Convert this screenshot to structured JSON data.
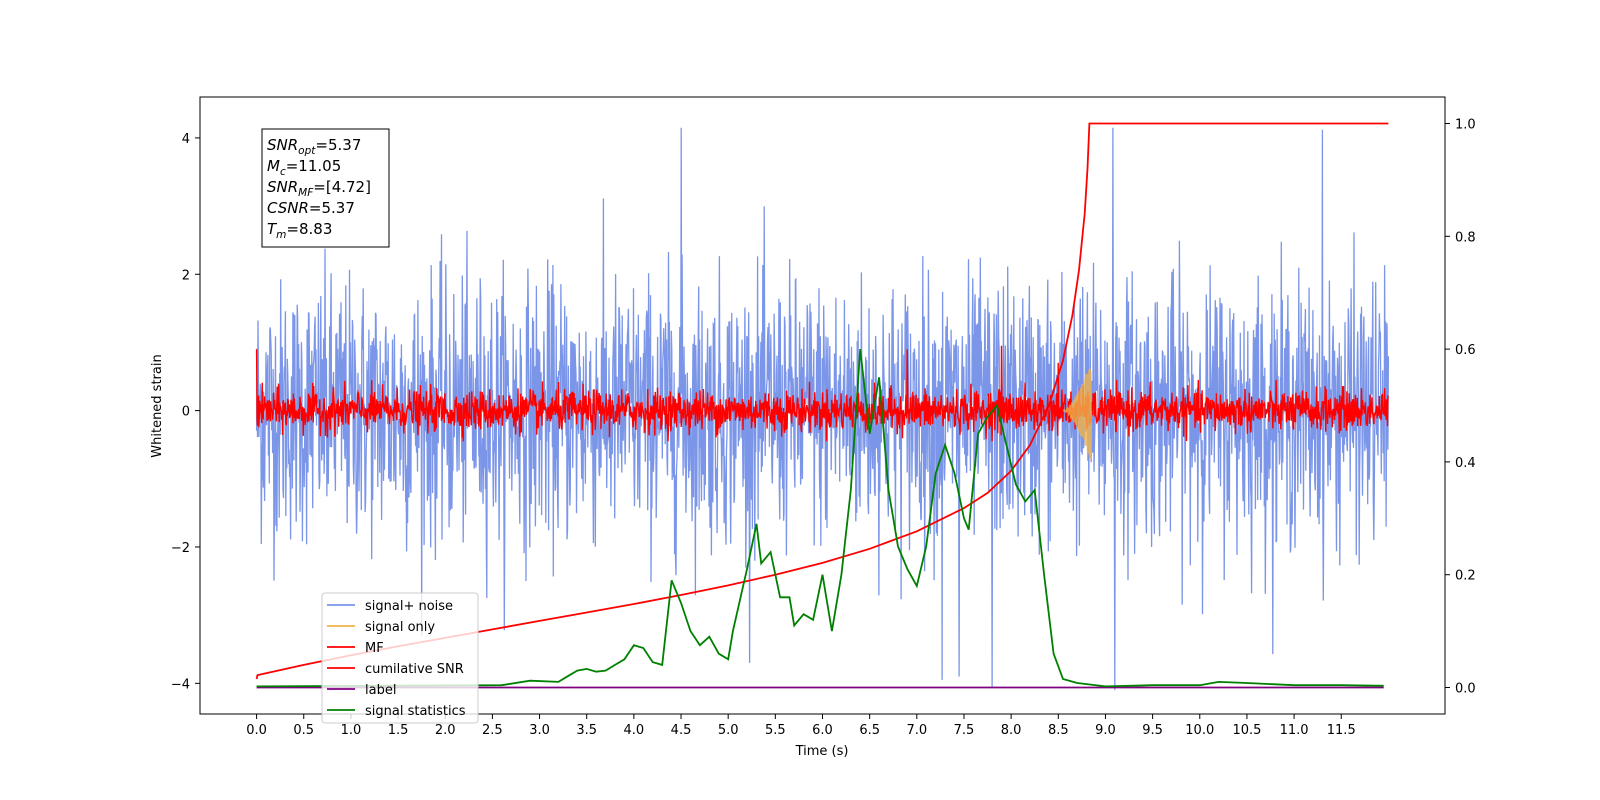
{
  "chart_data": {
    "type": "line",
    "xlabel": "Time (s)",
    "ylabel": "Whitened strain",
    "xlim": [
      -0.6,
      12.6
    ],
    "ylim": [
      -4.45,
      4.6
    ],
    "y2lim": [
      -0.047,
      1.047
    ],
    "grid": false,
    "legend_position": "lower-left",
    "x_ticks": [
      "0.0",
      "0.5",
      "1.0",
      "1.5",
      "2.0",
      "2.5",
      "3.0",
      "3.5",
      "4.0",
      "4.5",
      "5.0",
      "5.5",
      "6.0",
      "6.5",
      "7.0",
      "7.5",
      "8.0",
      "8.5",
      "9.0",
      "9.5",
      "10.0",
      "10.5",
      "11.0",
      "11.5"
    ],
    "y_ticks": [
      "−4",
      "−2",
      "0",
      "2",
      "4"
    ],
    "y2_ticks": [
      "0.0",
      "0.2",
      "0.4",
      "0.6",
      "0.8",
      "1.0"
    ],
    "annotation": {
      "lines": [
        {
          "sym": "SNR",
          "sub": "opt",
          "value": "=5.37"
        },
        {
          "sym": "M",
          "sub": "c",
          "value": "=11.05"
        },
        {
          "sym": "SNR",
          "sub": "MF",
          "value": "=[4.72]"
        },
        {
          "sym": "CSNR",
          "sub": "",
          "value": "=5.37"
        },
        {
          "sym": "T",
          "sub": "m",
          "value": "=8.83"
        }
      ]
    },
    "series": [
      {
        "name": "signal+ noise",
        "color": "#7b96e8",
        "axis": "left",
        "kind": "noise",
        "amplitude": 0.95,
        "x_range": [
          0,
          12
        ],
        "peaks": [
          [
            4.5,
            4.15
          ],
          [
            9.08,
            4.15
          ],
          [
            11.3,
            4.12
          ],
          [
            7.8,
            -4.05
          ],
          [
            9.1,
            -4.1
          ],
          [
            7.27,
            -3.95
          ],
          [
            7.45,
            -3.9
          ]
        ]
      },
      {
        "name": "signal only",
        "color": "#f0b24a",
        "axis": "left",
        "kind": "chirp",
        "x_range": [
          8.55,
          8.85
        ],
        "amplitude": 0.75
      },
      {
        "name": "MF",
        "color": "#ff0000",
        "axis": "left",
        "kind": "noise",
        "amplitude": 0.15,
        "x_range": [
          0,
          12
        ],
        "peaks": [
          [
            7.9,
            0.95
          ],
          [
            8.5,
            0.7
          ],
          [
            0.0,
            0.9
          ],
          [
            6.9,
            0.9
          ]
        ]
      },
      {
        "name": "cumilative SNR",
        "color": "#ff0000",
        "axis": "right",
        "x": [
          0.0,
          0.01,
          0.5,
          1.0,
          1.5,
          2.0,
          2.5,
          3.0,
          3.5,
          4.0,
          4.5,
          5.0,
          5.5,
          6.0,
          6.5,
          7.0,
          7.5,
          7.75,
          8.0,
          8.2,
          8.4,
          8.55,
          8.65,
          8.72,
          8.78,
          8.81,
          8.83,
          12.0
        ],
        "y": [
          0.015,
          0.022,
          0.04,
          0.057,
          0.073,
          0.088,
          0.103,
          0.118,
          0.133,
          0.148,
          0.164,
          0.181,
          0.2,
          0.221,
          0.246,
          0.277,
          0.318,
          0.345,
          0.384,
          0.43,
          0.5,
          0.58,
          0.66,
          0.74,
          0.84,
          0.92,
          1.0,
          1.0
        ]
      },
      {
        "name": "label",
        "color": "#800080",
        "axis": "right",
        "x": [
          0.0,
          11.95
        ],
        "y": [
          0.0,
          0.0
        ]
      },
      {
        "name": "signal statistics",
        "color": "#008000",
        "axis": "right",
        "x": [
          0.0,
          2.6,
          2.9,
          3.2,
          3.3,
          3.4,
          3.5,
          3.6,
          3.7,
          3.8,
          3.9,
          4.0,
          4.1,
          4.2,
          4.3,
          4.4,
          4.5,
          4.6,
          4.7,
          4.8,
          4.9,
          5.0,
          5.05,
          5.2,
          5.3,
          5.35,
          5.45,
          5.55,
          5.65,
          5.7,
          5.8,
          5.9,
          6.0,
          6.1,
          6.2,
          6.3,
          6.4,
          6.5,
          6.6,
          6.7,
          6.8,
          6.9,
          7.0,
          7.1,
          7.2,
          7.3,
          7.4,
          7.5,
          7.55,
          7.65,
          7.75,
          7.85,
          7.95,
          8.05,
          8.15,
          8.25,
          8.35,
          8.45,
          8.55,
          8.7,
          9.0,
          9.5,
          10.0,
          10.2,
          10.5,
          11.0,
          11.5,
          11.95
        ],
        "y": [
          0.002,
          0.004,
          0.012,
          0.01,
          0.02,
          0.03,
          0.033,
          0.028,
          0.03,
          0.04,
          0.05,
          0.075,
          0.07,
          0.045,
          0.04,
          0.19,
          0.15,
          0.1,
          0.075,
          0.09,
          0.06,
          0.05,
          0.1,
          0.21,
          0.29,
          0.22,
          0.24,
          0.16,
          0.16,
          0.11,
          0.13,
          0.12,
          0.2,
          0.1,
          0.2,
          0.35,
          0.6,
          0.45,
          0.55,
          0.35,
          0.25,
          0.21,
          0.18,
          0.25,
          0.38,
          0.43,
          0.38,
          0.3,
          0.28,
          0.45,
          0.48,
          0.5,
          0.43,
          0.36,
          0.33,
          0.35,
          0.2,
          0.06,
          0.015,
          0.008,
          0.002,
          0.004,
          0.004,
          0.01,
          0.008,
          0.004,
          0.004,
          0.003
        ]
      }
    ]
  }
}
